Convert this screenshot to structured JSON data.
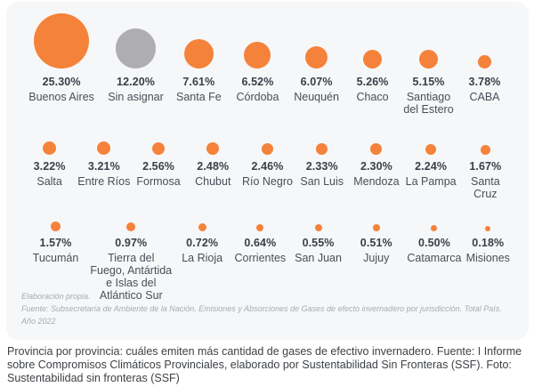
{
  "chart_data": {
    "type": "bubble",
    "title": "",
    "unit": "%",
    "description": "Share of greenhouse gas emissions by Argentine jurisdiction, bubble size proportional to percentage",
    "colors": {
      "default": "#f5823a",
      "unassigned": "#aeaeb0"
    },
    "rows": [
      {
        "items": [
          {
            "name": "Buenos Aires",
            "pct": "25.30%",
            "value": 25.3,
            "d": 62,
            "color": "default"
          },
          {
            "name": "Sin asignar",
            "pct": "12.20%",
            "value": 12.2,
            "d": 45,
            "color": "unassigned"
          },
          {
            "name": "Santa Fe",
            "pct": "7.61%",
            "value": 7.61,
            "d": 33,
            "color": "default"
          },
          {
            "name": "Córdoba",
            "pct": "6.52%",
            "value": 6.52,
            "d": 30,
            "color": "default"
          },
          {
            "name": "Neuquén",
            "pct": "6.07%",
            "value": 6.07,
            "d": 25,
            "color": "default"
          },
          {
            "name": "Chaco",
            "pct": "5.26%",
            "value": 5.26,
            "d": 21,
            "color": "default"
          },
          {
            "name": "Santiago del Estero",
            "pct": "5.15%",
            "value": 5.15,
            "d": 21,
            "color": "default"
          },
          {
            "name": "CABA",
            "pct": "3.78%",
            "value": 3.78,
            "d": 15,
            "color": "default"
          }
        ]
      },
      {
        "items": [
          {
            "name": "Salta",
            "pct": "3.22%",
            "value": 3.22,
            "d": 15,
            "color": "default"
          },
          {
            "name": "Entre Ríos",
            "pct": "3.21%",
            "value": 3.21,
            "d": 15,
            "color": "default"
          },
          {
            "name": "Formosa",
            "pct": "2.56%",
            "value": 2.56,
            "d": 14,
            "color": "default"
          },
          {
            "name": "Chubut",
            "pct": "2.48%",
            "value": 2.48,
            "d": 14,
            "color": "default"
          },
          {
            "name": "Río Negro",
            "pct": "2.46%",
            "value": 2.46,
            "d": 13,
            "color": "default"
          },
          {
            "name": "San Luis",
            "pct": "2.33%",
            "value": 2.33,
            "d": 13,
            "color": "default"
          },
          {
            "name": "Mendoza",
            "pct": "2.30%",
            "value": 2.3,
            "d": 13,
            "color": "default"
          },
          {
            "name": "La Pampa",
            "pct": "2.24%",
            "value": 2.24,
            "d": 12,
            "color": "default"
          },
          {
            "name": "Santa Cruz",
            "pct": "1.67%",
            "value": 1.67,
            "d": 11,
            "color": "default"
          }
        ]
      },
      {
        "items": [
          {
            "name": "Tucumán",
            "pct": "1.57%",
            "value": 1.57,
            "d": 11,
            "color": "default"
          },
          {
            "name": "Tierra del Fuego, Antártida e Islas del Atlántico Sur",
            "pct": "0.97%",
            "value": 0.97,
            "d": 10,
            "color": "default"
          },
          {
            "name": "La Rioja",
            "pct": "0.72%",
            "value": 0.72,
            "d": 9,
            "color": "default"
          },
          {
            "name": "Corrientes",
            "pct": "0.64%",
            "value": 0.64,
            "d": 8,
            "color": "default"
          },
          {
            "name": "San Juan",
            "pct": "0.55%",
            "value": 0.55,
            "d": 8,
            "color": "default"
          },
          {
            "name": "Jujuy",
            "pct": "0.51%",
            "value": 0.51,
            "d": 8,
            "color": "default"
          },
          {
            "name": "Catamarca",
            "pct": "0.50%",
            "value": 0.5,
            "d": 7,
            "color": "default"
          },
          {
            "name": "Misiones",
            "pct": "0.18%",
            "value": 0.18,
            "d": 6,
            "color": "default"
          }
        ]
      }
    ],
    "notes": [
      "Elaboración propia.",
      "Fuente: Subsecretaría de Ambiente de la Nación. Emisiones y Absorciones de Gases de efecto invernadero por jurisdicción. Total País. Año 2022"
    ]
  },
  "caption": "Provincia por provincia: cuáles emiten más cantidad de gases de efectivo invernadero. Fuente: I Informe sobre Compromisos Climáticos Provinciales, elaborado por Sustentabilidad Sin Fronteras (SSF). Foto: Sustentabilidad sin fronteras (SSF)"
}
